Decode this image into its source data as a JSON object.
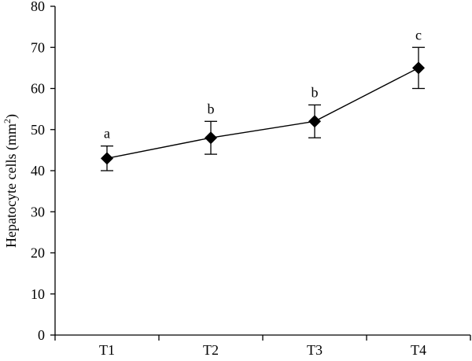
{
  "chart_data": {
    "type": "line",
    "categories": [
      "T1",
      "T2",
      "T3",
      "T4"
    ],
    "series": [
      {
        "values": [
          43,
          48,
          52,
          65
        ],
        "error_low": [
          40,
          44,
          48,
          60
        ],
        "error_high": [
          46,
          52,
          56,
          70
        ],
        "marker": "diamond",
        "color": "#000000"
      }
    ],
    "annotations": [
      "a",
      "b",
      "b",
      "c"
    ],
    "ylabel": "Hepatocyte cells (mm",
    "ylabel_superscript": "2",
    "ylabel_suffix": ")",
    "xlabel": "",
    "ylim": [
      0,
      80
    ],
    "yticks": [
      0,
      10,
      20,
      30,
      40,
      50,
      60,
      70,
      80
    ],
    "grid": false,
    "legend": "none"
  }
}
